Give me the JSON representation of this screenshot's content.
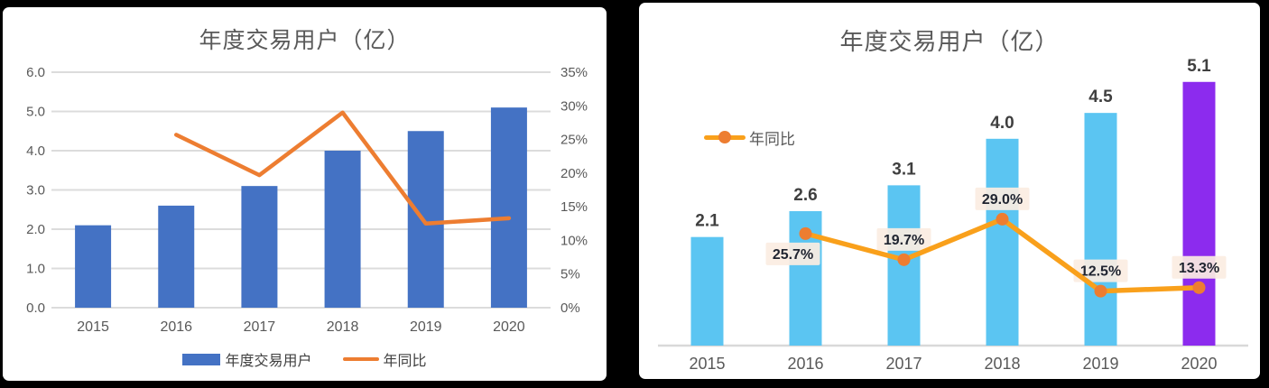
{
  "page": {
    "background": "#000000",
    "panel_background": "#ffffff"
  },
  "chart_data": [
    {
      "type": "bar",
      "subtype": "combo-bar-line-dual-axis",
      "title": "年度交易用户（亿）",
      "categories": [
        "2015",
        "2016",
        "2017",
        "2018",
        "2019",
        "2020"
      ],
      "series": [
        {
          "name": "年度交易用户",
          "kind": "bar",
          "axis": "left",
          "color": "#4472C4",
          "values": [
            2.1,
            2.6,
            3.1,
            4.0,
            4.5,
            5.1
          ]
        },
        {
          "name": "年同比",
          "kind": "line",
          "axis": "right",
          "color": "#ED7D31",
          "values": [
            null,
            25.7,
            19.7,
            29.0,
            12.5,
            13.3
          ]
        }
      ],
      "left_axis": {
        "min": 0,
        "max": 6,
        "ticks": [
          "6.0",
          "5.0",
          "4.0",
          "3.0",
          "2.0",
          "1.0",
          "0.0"
        ]
      },
      "right_axis": {
        "min": 0,
        "max": 35,
        "ticks": [
          "35%",
          "30%",
          "25%",
          "20%",
          "15%",
          "10%",
          "5%",
          "0%"
        ]
      },
      "grid": true,
      "grid_color": "#DCDCDC",
      "legend_position": "bottom"
    },
    {
      "type": "bar",
      "subtype": "combo-bar-line-labels",
      "title": "年度交易用户（亿）",
      "categories": [
        "2015",
        "2016",
        "2017",
        "2018",
        "2019",
        "2020"
      ],
      "series": [
        {
          "name": "年度交易用户",
          "kind": "bar",
          "values": [
            2.1,
            2.6,
            3.1,
            4.0,
            4.5,
            5.1
          ],
          "data_labels": [
            "2.1",
            "2.6",
            "3.1",
            "4.0",
            "4.5",
            "5.1"
          ],
          "bar_colors": [
            "#5BC5F2",
            "#5BC5F2",
            "#5BC5F2",
            "#5BC5F2",
            "#5BC5F2",
            "#8C2BEE"
          ]
        },
        {
          "name": "年同比",
          "kind": "line",
          "color": "#F9A01B",
          "marker_color": "#ED7D31",
          "values": [
            null,
            25.7,
            19.7,
            29.0,
            12.5,
            13.3
          ],
          "data_labels": [
            null,
            "25.7%",
            "19.7%",
            "29.0%",
            "12.5%",
            "13.3%"
          ],
          "label_positions": [
            null,
            "below",
            "above",
            "above",
            "above",
            "above"
          ],
          "label_bg": "#FBEDE2",
          "label_color": "#1F2430"
        }
      ],
      "value_axis": {
        "min": 0,
        "implied_max": 35
      },
      "grid": false,
      "axis_line_color": "#D9D9D9",
      "legend_position": "top-left",
      "legend": [
        "年同比"
      ]
    }
  ]
}
